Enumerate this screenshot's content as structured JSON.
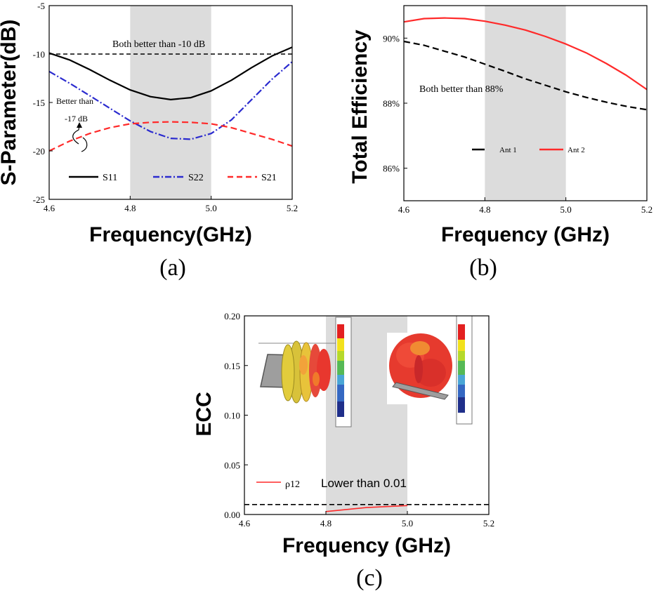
{
  "chart_data": [
    {
      "type": "line",
      "panel": "(a)",
      "caption": "(a)",
      "xlabel": "Frequency(GHz)",
      "ylabel": "S-Parameter(dB)",
      "xlim": [
        4.6,
        5.2
      ],
      "ylim": [
        -25,
        -5
      ],
      "xticks": [
        "4.6",
        "4.8",
        "5.0",
        "5.2"
      ],
      "yticks": [
        "-5",
        "-10",
        "-15",
        "-20",
        "-25"
      ],
      "shaded_band": [
        4.8,
        5.0
      ],
      "threshold": -10,
      "annotations": [
        "Both better than -10 dB",
        "Better than",
        "-17 dB"
      ],
      "x": [
        4.6,
        4.65,
        4.7,
        4.75,
        4.8,
        4.85,
        4.9,
        4.95,
        5.0,
        5.05,
        5.1,
        5.15,
        5.2
      ],
      "series": [
        {
          "name": "S11",
          "color": "#000000",
          "style": "solid",
          "values": [
            -9.9,
            -10.6,
            -11.6,
            -12.7,
            -13.7,
            -14.4,
            -14.7,
            -14.5,
            -13.8,
            -12.7,
            -11.4,
            -10.2,
            -9.3
          ]
        },
        {
          "name": "S22",
          "color": "#2b2bcf",
          "style": "dashdot",
          "values": [
            -11.8,
            -13.0,
            -14.3,
            -15.6,
            -16.9,
            -18.0,
            -18.7,
            -18.8,
            -18.2,
            -16.8,
            -14.7,
            -12.6,
            -10.8
          ]
        },
        {
          "name": "S21",
          "color": "#ff2a2a",
          "style": "dash",
          "values": [
            -20.0,
            -19.0,
            -18.2,
            -17.6,
            -17.2,
            -17.05,
            -17.0,
            -17.05,
            -17.2,
            -17.6,
            -18.2,
            -18.8,
            -19.5
          ]
        }
      ]
    },
    {
      "type": "line",
      "panel": "(b)",
      "caption": "(b)",
      "xlabel": "Frequency (GHz)",
      "ylabel": "Total Efficiency",
      "xlim": [
        4.6,
        5.2
      ],
      "ylim": [
        85.0,
        91.0
      ],
      "xticks": [
        "4.6",
        "4.8",
        "5.0",
        "5.2"
      ],
      "yticks": [
        "90%",
        "88%",
        "86%"
      ],
      "shaded_band": [
        4.8,
        5.0
      ],
      "annotations": [
        "Both better than 88%"
      ],
      "x": [
        4.6,
        4.65,
        4.7,
        4.75,
        4.8,
        4.85,
        4.9,
        4.95,
        5.0,
        5.05,
        5.1,
        5.15,
        5.2
      ],
      "series": [
        {
          "name": "Ant 1",
          "color": "#000000",
          "style": "dash",
          "values": [
            89.9,
            89.78,
            89.6,
            89.42,
            89.2,
            88.98,
            88.75,
            88.55,
            88.35,
            88.18,
            88.03,
            87.9,
            87.8
          ]
        },
        {
          "name": "Ant 2",
          "color": "#ff2a2a",
          "style": "solid",
          "values": [
            90.5,
            90.6,
            90.62,
            90.6,
            90.52,
            90.4,
            90.25,
            90.05,
            89.82,
            89.55,
            89.22,
            88.85,
            88.42
          ]
        }
      ]
    },
    {
      "type": "line",
      "panel": "(c)",
      "caption": "(c)",
      "xlabel": "Frequency (GHz)",
      "ylabel": "ECC",
      "xlim": [
        4.6,
        5.2
      ],
      "ylim": [
        0.0,
        0.2
      ],
      "xticks": [
        "4.6",
        "4.8",
        "5.0",
        "5.2"
      ],
      "yticks": [
        "0.20",
        "0.15",
        "0.10",
        "0.05",
        "0.00"
      ],
      "shaded_band": [
        4.8,
        5.0
      ],
      "threshold": 0.01,
      "annotations": [
        "Lower than 0.01"
      ],
      "x": [
        4.8,
        4.85,
        4.9,
        4.95,
        5.0
      ],
      "series": [
        {
          "name": "ρ12",
          "color": "#ff2a2a",
          "style": "solid",
          "values": [
            0.003,
            0.005,
            0.007,
            0.008,
            0.009
          ]
        }
      ]
    }
  ]
}
